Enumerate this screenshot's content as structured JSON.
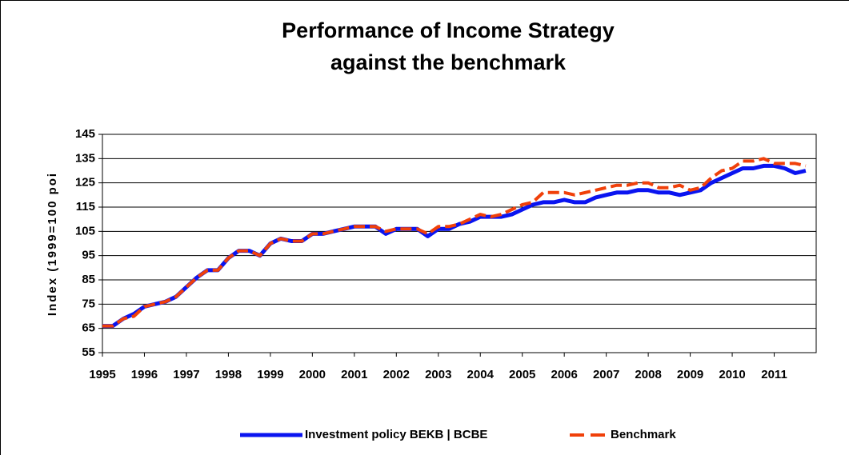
{
  "chart_data": {
    "type": "line",
    "title_lines": [
      "Performance of Income Strategy",
      "against the benchmark"
    ],
    "y_label": "Index (1999=100 poi",
    "x": [
      1995.0,
      1995.25,
      1995.5,
      1995.75,
      1996.0,
      1996.25,
      1996.5,
      1996.75,
      1997.0,
      1997.25,
      1997.5,
      1997.75,
      1998.0,
      1998.25,
      1998.5,
      1998.75,
      1999.0,
      1999.25,
      1999.5,
      1999.75,
      2000.0,
      2000.25,
      2000.5,
      2000.75,
      2001.0,
      2001.25,
      2001.5,
      2001.75,
      2002.0,
      2002.25,
      2002.5,
      2002.75,
      2003.0,
      2003.25,
      2003.5,
      2003.75,
      2004.0,
      2004.25,
      2004.5,
      2004.75,
      2005.0,
      2005.25,
      2005.5,
      2005.75,
      2006.0,
      2006.25,
      2006.5,
      2006.75,
      2007.0,
      2007.25,
      2007.5,
      2007.75,
      2008.0,
      2008.25,
      2008.5,
      2008.75,
      2009.0,
      2009.25,
      2009.5,
      2009.75,
      2010.0,
      2010.25,
      2010.5,
      2010.75,
      2011.0,
      2011.25,
      2011.5,
      2011.75
    ],
    "series": [
      {
        "name": "Investment policy BEKB | BCBE",
        "color": "#0a14f0",
        "style": "solid",
        "values": [
          66,
          66,
          69,
          71,
          74,
          75,
          76,
          78,
          82,
          86,
          89,
          89,
          94,
          97,
          97,
          95,
          100,
          102,
          101,
          101,
          104,
          104,
          105,
          106,
          107,
          107,
          107,
          104,
          106,
          106,
          106,
          103,
          106,
          106,
          108,
          109,
          111,
          111,
          111,
          112,
          114,
          116,
          117,
          117,
          118,
          117,
          117,
          119,
          120,
          121,
          121,
          122,
          122,
          121,
          121,
          120,
          121,
          122,
          125,
          127,
          129,
          131,
          131,
          132,
          132,
          131,
          129,
          130
        ]
      },
      {
        "name": "Benchmark",
        "color": "#f0400a",
        "style": "dashed",
        "values": [
          66,
          66,
          69,
          70,
          74,
          75,
          76,
          78,
          82,
          86,
          89,
          89,
          94,
          97,
          97,
          95,
          100,
          102,
          101,
          101,
          104,
          104,
          105,
          106,
          107,
          107,
          107,
          105,
          106,
          106,
          106,
          104,
          107,
          107,
          108,
          110,
          112,
          111,
          112,
          114,
          116,
          117,
          121,
          121,
          121,
          120,
          121,
          122,
          123,
          124,
          124,
          125,
          125,
          123,
          123,
          124,
          122,
          123,
          127,
          130,
          131,
          134,
          134,
          135,
          133,
          133,
          133,
          132
        ]
      }
    ],
    "xlim": [
      1995,
      2012
    ],
    "xticks": [
      1995,
      1996,
      1997,
      1998,
      1999,
      2000,
      2001,
      2002,
      2003,
      2004,
      2005,
      2006,
      2007,
      2008,
      2009,
      2010,
      2011
    ],
    "ylim": [
      55,
      145
    ],
    "yticks": [
      55,
      65,
      75,
      85,
      95,
      105,
      115,
      125,
      135,
      145
    ],
    "grid": true,
    "legend": "bottom"
  }
}
